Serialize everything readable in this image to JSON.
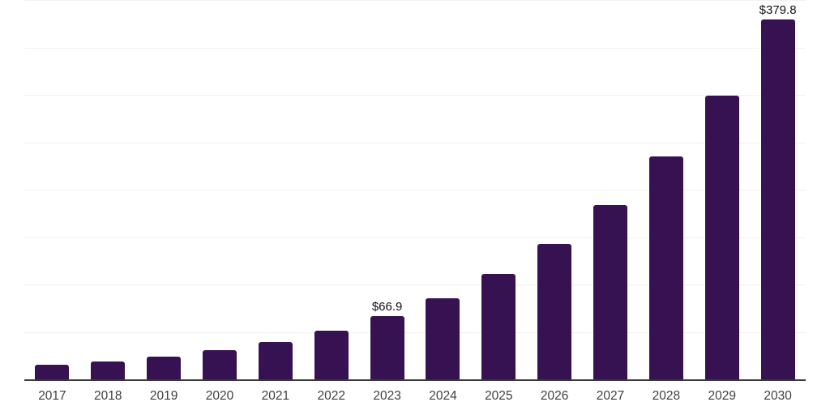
{
  "chart_data": {
    "type": "bar",
    "title": "",
    "xlabel": "",
    "ylabel": "",
    "categories": [
      "2017",
      "2018",
      "2019",
      "2020",
      "2021",
      "2022",
      "2023",
      "2024",
      "2025",
      "2026",
      "2027",
      "2028",
      "2029",
      "2030"
    ],
    "values": [
      15.2,
      19.1,
      24.0,
      30.5,
      39.0,
      51.2,
      66.9,
      85.6,
      111.5,
      143.0,
      184.2,
      235.1,
      299.4,
      379.8
    ],
    "point_labels": {
      "2023": "$66.9",
      "2030": "$379.8"
    },
    "ylim": [
      0,
      400
    ],
    "gridline_step": 50,
    "grid": true,
    "legend": false,
    "y_tick_labels_visible": false,
    "colors": {
      "bar": "#371252",
      "axis": "#3a3a3a",
      "gridline": "#f1f1f1",
      "value_label": "#111111",
      "tick_label": "#3f3f3f",
      "background": "#ffffff"
    }
  }
}
